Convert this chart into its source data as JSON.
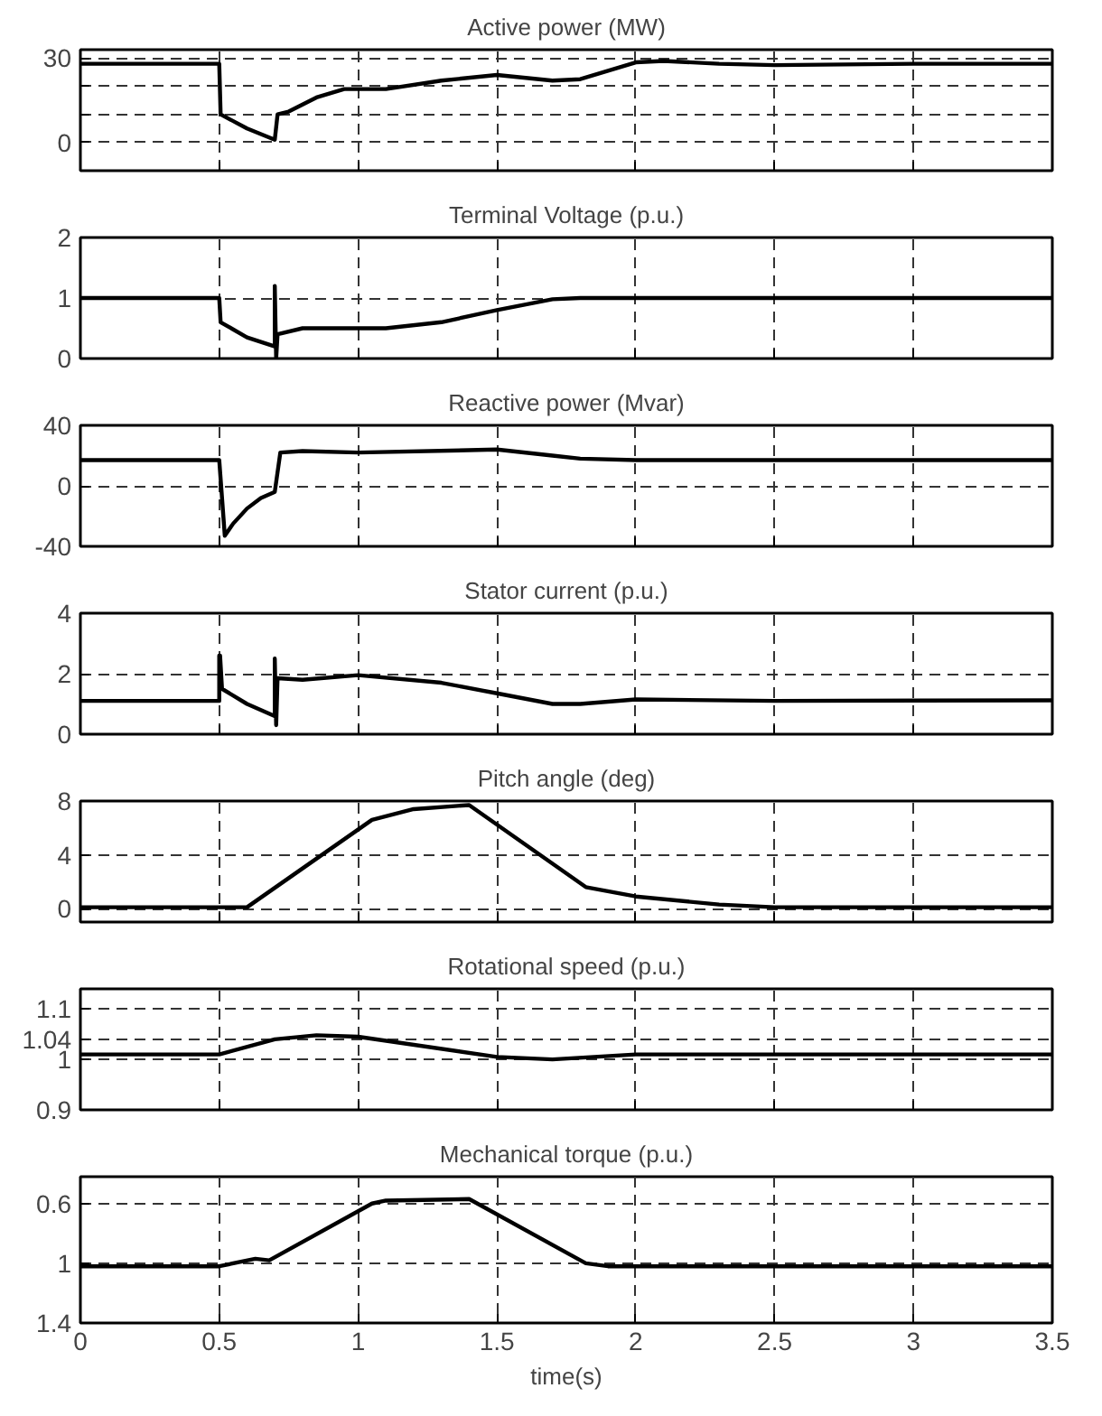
{
  "chart_data": [
    {
      "type": "line",
      "title": "Active power (MW)",
      "xlim": [
        0,
        3.5
      ],
      "xticks": [
        0,
        0.5,
        1,
        1.5,
        2,
        2.5,
        3,
        3.5
      ],
      "ylim": [
        -10,
        33
      ],
      "yticks": [
        0,
        {
          "value": 10,
          "label": null
        },
        {
          "value": 20,
          "label": null
        },
        30
      ],
      "grid": true,
      "tick_labels": "y",
      "series": [
        {
          "color": "#000000",
          "x": [
            0,
            0.5,
            0.505,
            0.6,
            0.7,
            0.71,
            0.75,
            0.85,
            0.95,
            1.1,
            1.3,
            1.5,
            1.7,
            1.8,
            2.0,
            2.1,
            2.3,
            2.5,
            3.0,
            3.5
          ],
          "values": [
            28,
            28,
            10,
            5,
            1,
            10,
            11,
            16,
            19,
            19,
            22,
            24,
            22,
            22.5,
            28.5,
            29,
            28,
            27.5,
            28,
            28
          ]
        }
      ]
    },
    {
      "type": "line",
      "title": "Terminal Voltage (p.u.)",
      "xlim": [
        0,
        3.5
      ],
      "xticks": [
        0,
        0.5,
        1,
        1.5,
        2,
        2.5,
        3,
        3.5
      ],
      "ylim": [
        0,
        2
      ],
      "yticks": [
        0,
        1,
        2
      ],
      "grid": true,
      "tick_labels": "y",
      "series": [
        {
          "color": "#000000",
          "x": [
            0,
            0.5,
            0.505,
            0.6,
            0.7,
            0.7,
            0.705,
            0.71,
            0.8,
            0.95,
            1.1,
            1.3,
            1.5,
            1.7,
            1.8,
            2.0,
            3.5
          ],
          "values": [
            1,
            1,
            0.6,
            0.35,
            0.2,
            1.2,
            0.0,
            0.4,
            0.5,
            0.5,
            0.5,
            0.6,
            0.8,
            0.98,
            1.0,
            1.0,
            1.0
          ]
        }
      ]
    },
    {
      "type": "line",
      "title": "Reactive power (Mvar)",
      "xlim": [
        0,
        3.5
      ],
      "xticks": [
        0,
        0.5,
        1,
        1.5,
        2,
        2.5,
        3,
        3.5
      ],
      "ylim": [
        -40,
        40
      ],
      "yticks": [
        -40,
        0,
        40
      ],
      "grid": true,
      "tick_labels": "y",
      "series": [
        {
          "color": "#000000",
          "x": [
            0,
            0.5,
            0.52,
            0.55,
            0.6,
            0.65,
            0.7,
            0.72,
            0.8,
            1.0,
            1.5,
            1.7,
            1.8,
            2.0,
            3.5
          ],
          "values": [
            17,
            17,
            -33,
            -25,
            -15,
            -8,
            -4,
            22,
            23,
            22,
            24,
            20,
            18,
            17,
            17
          ]
        }
      ]
    },
    {
      "type": "line",
      "title": "Stator current (p.u.)",
      "xlim": [
        0,
        3.5
      ],
      "xticks": [
        0,
        0.5,
        1,
        1.5,
        2,
        2.5,
        3,
        3.5
      ],
      "ylim": [
        0,
        4
      ],
      "yticks": [
        0,
        2,
        4
      ],
      "grid": true,
      "tick_labels": "y",
      "series": [
        {
          "color": "#000000",
          "x": [
            0,
            0.5,
            0.5,
            0.503,
            0.51,
            0.6,
            0.7,
            0.7,
            0.705,
            0.71,
            0.8,
            1.0,
            1.3,
            1.5,
            1.7,
            1.8,
            2.0,
            2.5,
            3.5
          ],
          "values": [
            1.1,
            1.1,
            2.6,
            2.6,
            1.5,
            1.0,
            0.6,
            2.5,
            0.3,
            1.85,
            1.8,
            1.95,
            1.7,
            1.35,
            1.0,
            1.0,
            1.15,
            1.1,
            1.12
          ]
        }
      ]
    },
    {
      "type": "line",
      "title": "Pitch angle (deg)",
      "xlim": [
        0,
        3.5
      ],
      "xticks": [
        0,
        0.5,
        1,
        1.5,
        2,
        2.5,
        3,
        3.5
      ],
      "ylim": [
        -1,
        8
      ],
      "yticks": [
        0,
        4,
        8
      ],
      "grid": true,
      "tick_labels": "y",
      "series": [
        {
          "color": "#000000",
          "x": [
            0,
            0.6,
            1.05,
            1.2,
            1.4,
            1.82,
            2.0,
            2.3,
            2.5,
            3.5
          ],
          "values": [
            0.1,
            0.1,
            6.6,
            7.4,
            7.7,
            1.6,
            0.9,
            0.3,
            0.1,
            0.1
          ]
        }
      ]
    },
    {
      "type": "line",
      "title": "Rotational speed (p.u.)",
      "xlim": [
        0,
        3.5
      ],
      "xticks": [
        0,
        0.5,
        1,
        1.5,
        2,
        2.5,
        3,
        3.5
      ],
      "ylim": [
        0.9,
        1.14
      ],
      "yticks": [
        0.9,
        1,
        1.04,
        1.1
      ],
      "grid": true,
      "tick_labels": "y",
      "series": [
        {
          "color": "#000000",
          "x": [
            0,
            0.5,
            0.7,
            0.85,
            1.0,
            1.5,
            1.7,
            2.0,
            2.5,
            3.5
          ],
          "values": [
            1.01,
            1.01,
            1.04,
            1.048,
            1.045,
            1.005,
            1.0,
            1.01,
            1.01,
            1.01
          ]
        }
      ]
    },
    {
      "type": "line",
      "title": "Mechanical torque (p.u.)",
      "xlabel": "time(s)",
      "xlim": [
        0,
        3.5
      ],
      "xticks": [
        0,
        0.5,
        1,
        1.5,
        2,
        2.5,
        3,
        3.5
      ],
      "ylim": [
        1.4,
        0.42
      ],
      "yticks": [
        0.6,
        1,
        1.4
      ],
      "grid": true,
      "series": [
        {
          "color": "#000000",
          "x": [
            0,
            0.5,
            0.63,
            0.68,
            1.05,
            1.1,
            1.4,
            1.82,
            1.9,
            2.5,
            3.5
          ],
          "values": [
            1.02,
            1.02,
            0.97,
            0.98,
            0.6,
            0.58,
            0.57,
            1.0,
            1.02,
            1.02,
            1.02
          ]
        }
      ]
    }
  ]
}
